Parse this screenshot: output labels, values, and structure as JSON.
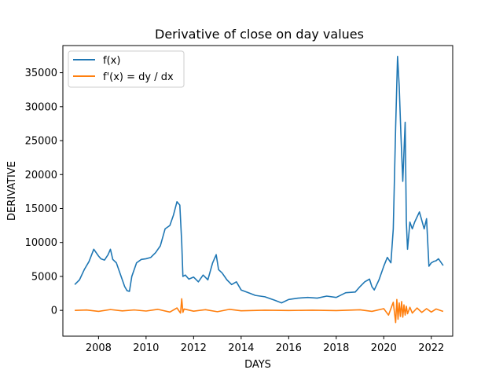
{
  "chart_data": {
    "type": "line",
    "title": "Derivative of close on day values",
    "xlabel": "DAYS",
    "ylabel": "DERIVATIVE",
    "xlim": [
      2006.5,
      2022.9
    ],
    "ylim": [
      -3800,
      39000
    ],
    "xticks": [
      2008,
      2010,
      2012,
      2014,
      2016,
      2018,
      2020,
      2022
    ],
    "yticks": [
      0,
      5000,
      10000,
      15000,
      20000,
      25000,
      30000,
      35000
    ],
    "legend_position": "upper-left",
    "grid": false,
    "series": [
      {
        "name": "f(x)",
        "color": "#1f77b4",
        "x": [
          2007.0,
          2007.2,
          2007.4,
          2007.6,
          2007.8,
          2008.0,
          2008.1,
          2008.25,
          2008.4,
          2008.5,
          2008.6,
          2008.75,
          2008.9,
          2009.0,
          2009.1,
          2009.2,
          2009.3,
          2009.4,
          2009.6,
          2009.8,
          2010.0,
          2010.2,
          2010.4,
          2010.6,
          2010.8,
          2011.0,
          2011.15,
          2011.3,
          2011.42,
          2011.5,
          2011.55,
          2011.65,
          2011.8,
          2012.0,
          2012.2,
          2012.4,
          2012.6,
          2012.8,
          2012.95,
          2013.05,
          2013.2,
          2013.4,
          2013.6,
          2013.8,
          2014.0,
          2014.3,
          2014.6,
          2015.0,
          2015.4,
          2015.7,
          2016.0,
          2016.4,
          2016.8,
          2017.2,
          2017.6,
          2018.0,
          2018.4,
          2018.8,
          2019.0,
          2019.2,
          2019.4,
          2019.5,
          2019.6,
          2019.8,
          2020.0,
          2020.15,
          2020.3,
          2020.4,
          2020.5,
          2020.58,
          2020.65,
          2020.72,
          2020.8,
          2020.9,
          2020.95,
          2021.0,
          2021.1,
          2021.2,
          2021.3,
          2021.5,
          2021.7,
          2021.8,
          2021.9,
          2022.0,
          2022.1,
          2022.2,
          2022.3,
          2022.5
        ],
        "y": [
          3800,
          4500,
          6000,
          7200,
          9000,
          8000,
          7600,
          7400,
          8200,
          9000,
          7500,
          7000,
          5500,
          4500,
          3500,
          2900,
          2800,
          5000,
          7000,
          7500,
          7600,
          7800,
          8500,
          9500,
          12000,
          12500,
          14000,
          16000,
          15500,
          10000,
          5000,
          5200,
          4600,
          4900,
          4200,
          5200,
          4500,
          7000,
          8200,
          6000,
          5500,
          4500,
          3800,
          4200,
          3000,
          2600,
          2200,
          2000,
          1500,
          1100,
          1600,
          1800,
          1900,
          1800,
          2100,
          1900,
          2600,
          2700,
          3500,
          4200,
          4600,
          3500,
          3000,
          4500,
          6500,
          7800,
          7000,
          12000,
          27000,
          37400,
          33000,
          26000,
          19000,
          27700,
          13000,
          9000,
          13000,
          12000,
          13000,
          14500,
          12000,
          13500,
          6500,
          7000,
          7200,
          7300,
          7600,
          6600
        ]
      },
      {
        "name": "f'(x) = dy / dx",
        "color": "#ff7f0e",
        "x": [
          2007.0,
          2007.5,
          2008.0,
          2008.5,
          2009.0,
          2009.5,
          2010.0,
          2010.5,
          2011.0,
          2011.3,
          2011.45,
          2011.5,
          2011.55,
          2011.6,
          2012.0,
          2012.5,
          2013.0,
          2013.5,
          2014.0,
          2015.0,
          2016.0,
          2017.0,
          2018.0,
          2019.0,
          2019.5,
          2020.0,
          2020.2,
          2020.4,
          2020.5,
          2020.55,
          2020.6,
          2020.65,
          2020.7,
          2020.75,
          2020.8,
          2020.85,
          2020.9,
          2020.95,
          2021.0,
          2021.1,
          2021.2,
          2021.4,
          2021.6,
          2021.8,
          2022.0,
          2022.2,
          2022.5
        ],
        "y": [
          0,
          50,
          -150,
          120,
          -80,
          60,
          -100,
          150,
          -250,
          350,
          -400,
          1700,
          -300,
          200,
          -120,
          100,
          -200,
          150,
          -60,
          30,
          -20,
          25,
          -30,
          80,
          -150,
          250,
          -700,
          1200,
          -1800,
          1600,
          -1300,
          1100,
          -900,
          1300,
          -1000,
          800,
          -700,
          600,
          -500,
          450,
          -400,
          350,
          -300,
          250,
          -250,
          200,
          -150
        ]
      }
    ]
  }
}
